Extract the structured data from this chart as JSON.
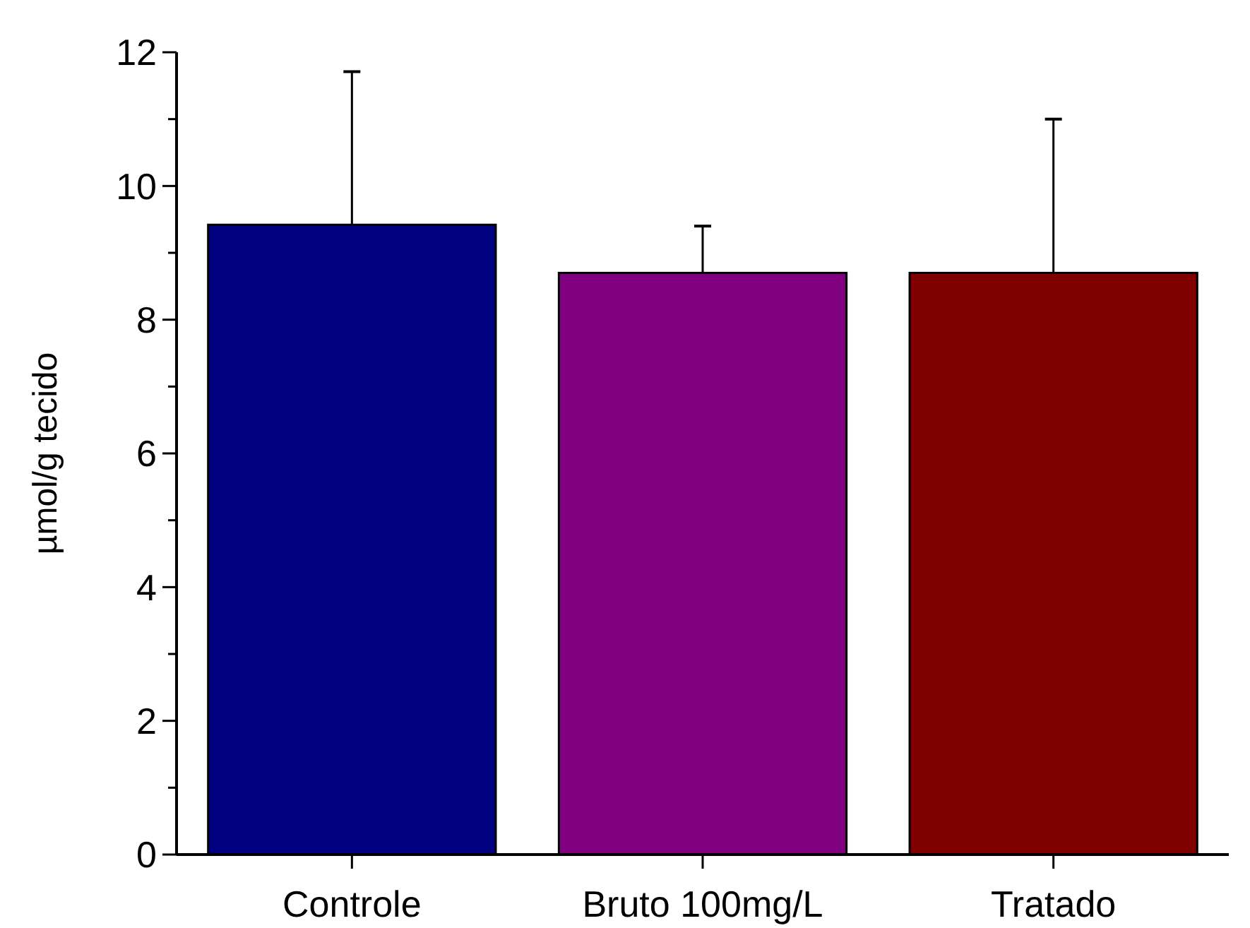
{
  "chart_data": {
    "type": "bar",
    "ylabel": "µmol/g tecido",
    "categories": [
      "Controle",
      "Bruto 100mg/L",
      "Tratado"
    ],
    "values": [
      9.42,
      8.7,
      8.7
    ],
    "colors": [
      "#000080",
      "#800080",
      "#800000"
    ],
    "errors": [
      [
        9.42,
        11.71
      ],
      [
        8.7,
        9.4
      ],
      [
        8.7,
        11.0
      ]
    ],
    "ylim": [
      0,
      12
    ],
    "yticks": [
      0,
      {
        "value": 1,
        "label": null
      },
      2,
      {
        "value": 3,
        "label": null
      },
      4,
      {
        "value": 5,
        "label": null
      },
      6,
      {
        "value": 7,
        "label": null
      },
      8,
      {
        "value": 9,
        "label": null
      },
      10,
      {
        "value": 11,
        "label": null
      },
      12
    ],
    "grid": false
  }
}
